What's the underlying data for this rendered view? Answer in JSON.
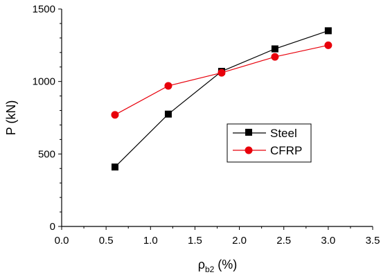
{
  "chart_data": {
    "type": "line",
    "title": "",
    "xlabel": {
      "main": "ρ",
      "sub": "b2",
      "suffix": " (%)"
    },
    "ylabel": "P (kN)",
    "xlim": [
      0,
      3.5
    ],
    "ylim": [
      0,
      1500
    ],
    "x_ticks": [
      0,
      0.5,
      1,
      1.5,
      2,
      2.5,
      3,
      3.5
    ],
    "x_tick_labels": [
      "0.0",
      "0.5",
      "1.0",
      "1.5",
      "2.0",
      "2.5",
      "3.0",
      "3.5"
    ],
    "y_ticks": [
      0,
      500,
      1000,
      1500
    ],
    "y_tick_labels": [
      "0",
      "500",
      "1000",
      "1500"
    ],
    "grid": false,
    "legend_position": "center-right",
    "series": [
      {
        "name": "Steel",
        "color": "#000000",
        "marker": "square",
        "x": [
          0.6,
          1.2,
          1.8,
          2.4,
          3.0
        ],
        "y": [
          410,
          775,
          1070,
          1225,
          1350
        ]
      },
      {
        "name": "CFRP",
        "color": "#e8000b",
        "marker": "circle",
        "x": [
          0.6,
          1.2,
          1.8,
          2.4,
          3.0
        ],
        "y": [
          770,
          970,
          1060,
          1170,
          1250
        ]
      }
    ]
  }
}
